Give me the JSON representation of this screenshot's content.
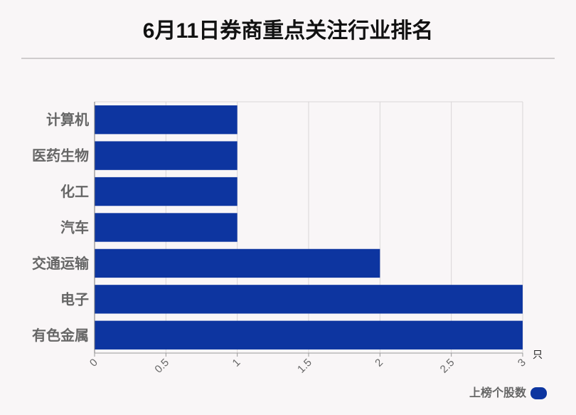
{
  "title": "6月11日券商重点关注行业排名",
  "chart_data": {
    "type": "bar",
    "orientation": "horizontal",
    "categories": [
      "计算机",
      "医药生物",
      "化工",
      "汽车",
      "交通运输",
      "电子",
      "有色金属"
    ],
    "series": [
      {
        "name": "上榜个股数",
        "values": [
          1,
          1,
          1,
          1,
          2,
          3,
          3
        ],
        "color": "#0d35a0"
      }
    ],
    "xlim": [
      0,
      3
    ],
    "xticks": [
      "0",
      "0.5",
      "1",
      "1.5",
      "2",
      "2.5",
      "3"
    ],
    "xunit": "只",
    "grid": true,
    "legend_position": "bottom-right"
  }
}
